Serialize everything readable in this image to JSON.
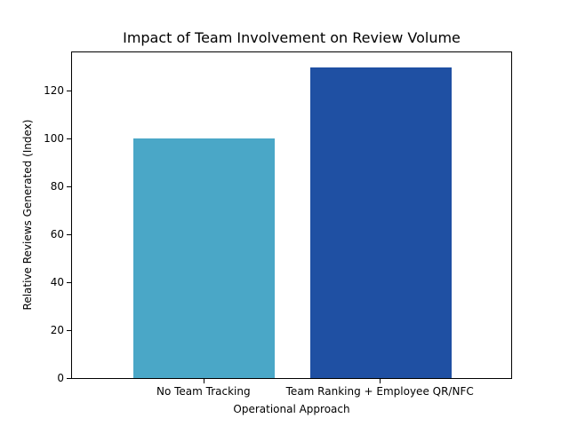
{
  "chart_data": {
    "type": "bar",
    "title": "Impact of Team Involvement on Review Volume",
    "xlabel": "Operational Approach",
    "ylabel": "Relative Reviews Generated (Index)",
    "categories": [
      "No Team Tracking",
      "Team Ranking + Employee QR/NFC"
    ],
    "values": [
      100,
      130
    ],
    "colors": [
      "#4aa7c7",
      "#1f50a3"
    ],
    "ylim": [
      0,
      136.5
    ],
    "yticks": [
      0,
      20,
      40,
      60,
      80,
      100,
      120
    ],
    "grid": false,
    "legend": null
  }
}
